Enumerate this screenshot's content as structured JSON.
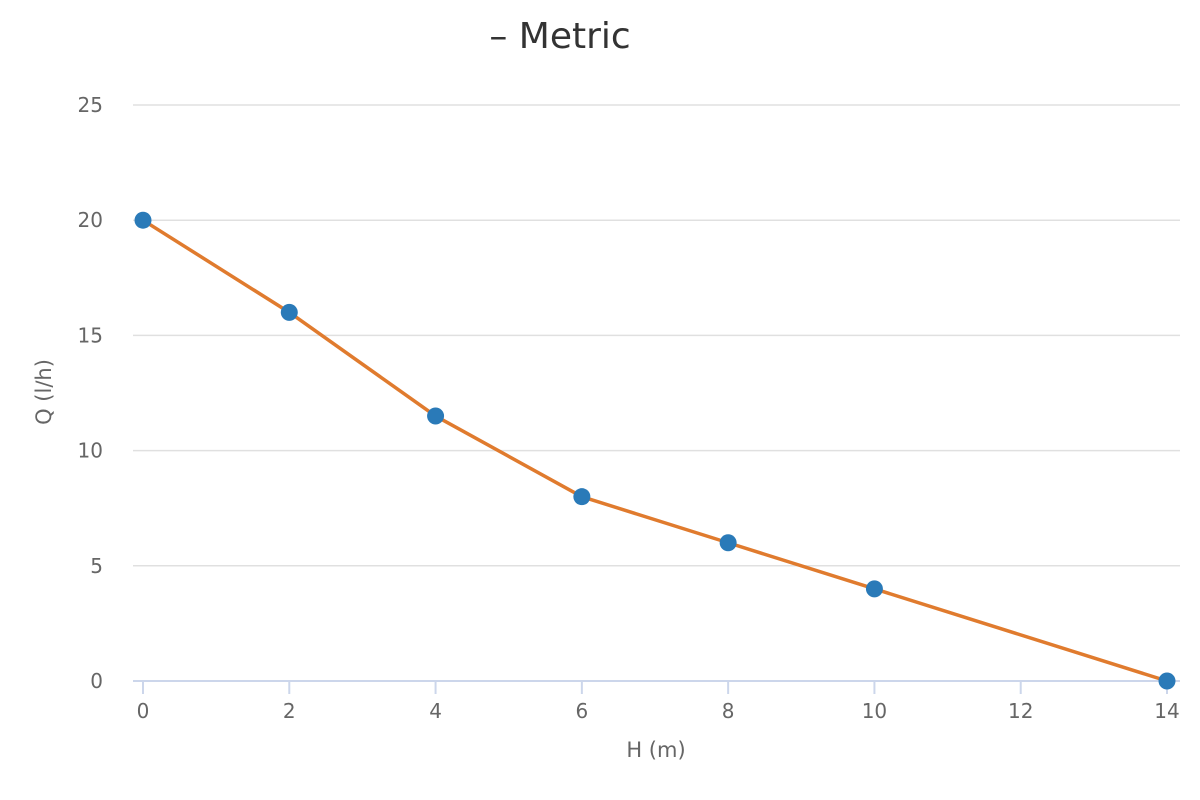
{
  "chart_data": {
    "type": "line",
    "title": "– Metric",
    "xlabel": "H (m)",
    "ylabel": "Q (l/h)",
    "xlim": [
      0,
      14
    ],
    "ylim": [
      0,
      25
    ],
    "x_ticks": [
      0,
      2,
      4,
      6,
      8,
      10,
      12,
      14
    ],
    "y_ticks": [
      0,
      5,
      10,
      15,
      20,
      25
    ],
    "grid": "horizontal",
    "series": [
      {
        "x": [
          0,
          2,
          4,
          6,
          8,
          10,
          14
        ],
        "values": [
          20,
          16,
          11.5,
          8,
          6,
          4,
          0
        ],
        "line_color": "#e07b2e",
        "marker_color": "#2a7ab8"
      }
    ]
  }
}
